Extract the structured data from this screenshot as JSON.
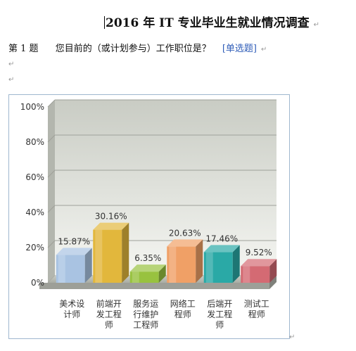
{
  "document": {
    "title": "2016 年 IT 专业毕业生就业情况调查",
    "paragraph_mark": "↵",
    "question": {
      "number": "第 1 题",
      "text": "您目前的（或计划参与）工作职位是？",
      "type": "[单选题]"
    }
  },
  "chart_data": {
    "type": "bar",
    "title": "",
    "xlabel": "",
    "ylabel": "",
    "ylim": [
      0,
      100
    ],
    "yticks": [
      "0%",
      "20%",
      "40%",
      "60%",
      "80%",
      "100%"
    ],
    "grid": true,
    "categories": [
      "美术设计师",
      "前端开发工程师",
      "服务运行维护工程师",
      "网络工程师",
      "后端开发工程师",
      "测试工程师"
    ],
    "category_labels": [
      [
        "美术设",
        "计师"
      ],
      [
        "前端开",
        "发工程",
        "师"
      ],
      [
        "服务运",
        "行维护",
        "工程师"
      ],
      [
        "网络工",
        "程师"
      ],
      [
        "后端开",
        "发工程",
        "师"
      ],
      [
        "测试工",
        "程师"
      ]
    ],
    "values": [
      15.87,
      30.16,
      6.35,
      20.63,
      17.46,
      9.52
    ],
    "value_labels": [
      "15.87%",
      "30.16%",
      "6.35%",
      "20.63%",
      "17.46%",
      "9.52%"
    ],
    "bar_colors": [
      "#a9c3e2",
      "#e2b73c",
      "#98c23f",
      "#f0a066",
      "#2aa9a6",
      "#d46a73"
    ]
  }
}
